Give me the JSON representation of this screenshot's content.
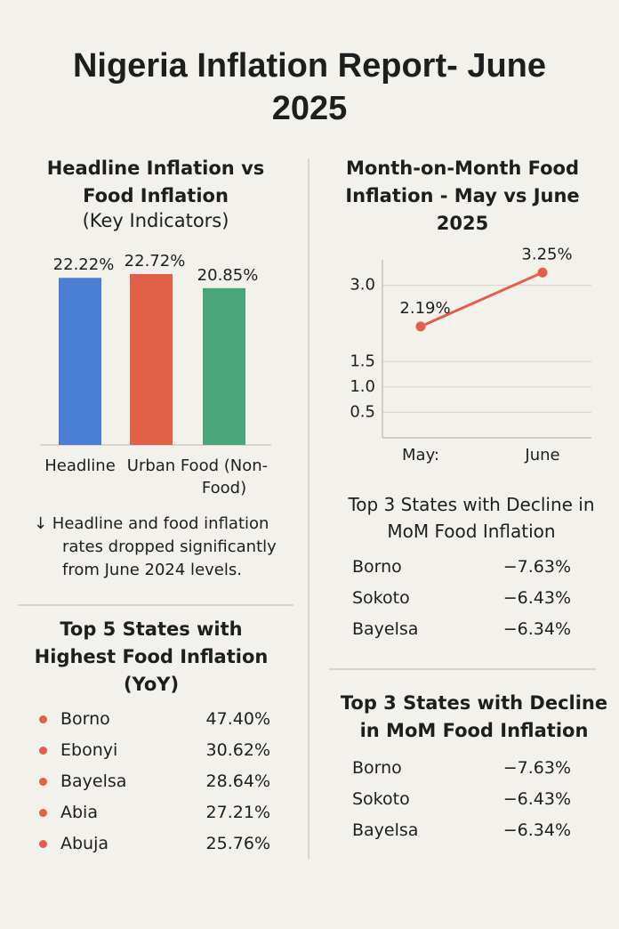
{
  "title": "Nigeria Inflation Report- June 2025",
  "chart_data": [
    {
      "type": "bar",
      "title": "Headline Inflation vs Food Inflation",
      "subtitle": "(Key Indicators)",
      "categories": [
        "Headline",
        "Urban",
        "Food (Non-Food)"
      ],
      "values": [
        22.22,
        22.72,
        20.85
      ],
      "value_labels": [
        "22.22%",
        "22.72%",
        "20.85%"
      ],
      "colors": [
        "#4a7fd4",
        "#e0604a",
        "#4aa57a"
      ]
    },
    {
      "type": "line",
      "title": "Month-on-Month Food Inflation - May vs June 2025",
      "categories": [
        "May:",
        "June"
      ],
      "values": [
        2.19,
        3.25
      ],
      "value_labels": [
        "2.19%",
        "3.25%"
      ],
      "color": "#e0604a",
      "ylim": [
        0,
        3.5
      ],
      "yticks": [
        {
          "value": 3,
          "label": "3.0"
        },
        1.5,
        {
          "value": 1,
          "label": "1.0"
        },
        0.5
      ],
      "grid": true
    }
  ],
  "note": "↓ Headline and food inflation rates dropped significantly from June 2024 levels.",
  "top5": {
    "title": "Top 5 States with Highest Food Inflation (YoY)",
    "rows": [
      [
        "Borno",
        "47.40%"
      ],
      [
        "Ebonyi",
        "30.62%"
      ],
      [
        "Bayelsa",
        "28.64%"
      ],
      [
        "Abia",
        "27.21%"
      ],
      [
        "Abuja",
        "25.76%"
      ]
    ]
  },
  "top3_a": {
    "title": "Top 3 States with Decline in MoM Food Inflation",
    "rows": [
      [
        "Borno",
        "−7.63%"
      ],
      [
        "Sokoto",
        "−6.43%"
      ],
      [
        "Bayelsa",
        "−6.34%"
      ]
    ]
  },
  "top3_b": {
    "title": "Top 3 States with Decline in MoM Food Inflation",
    "rows": [
      [
        "Borno",
        "−7.63%"
      ],
      [
        "Sokoto",
        "−6.43%"
      ],
      [
        "Bayelsa",
        "−6.34%"
      ]
    ]
  }
}
